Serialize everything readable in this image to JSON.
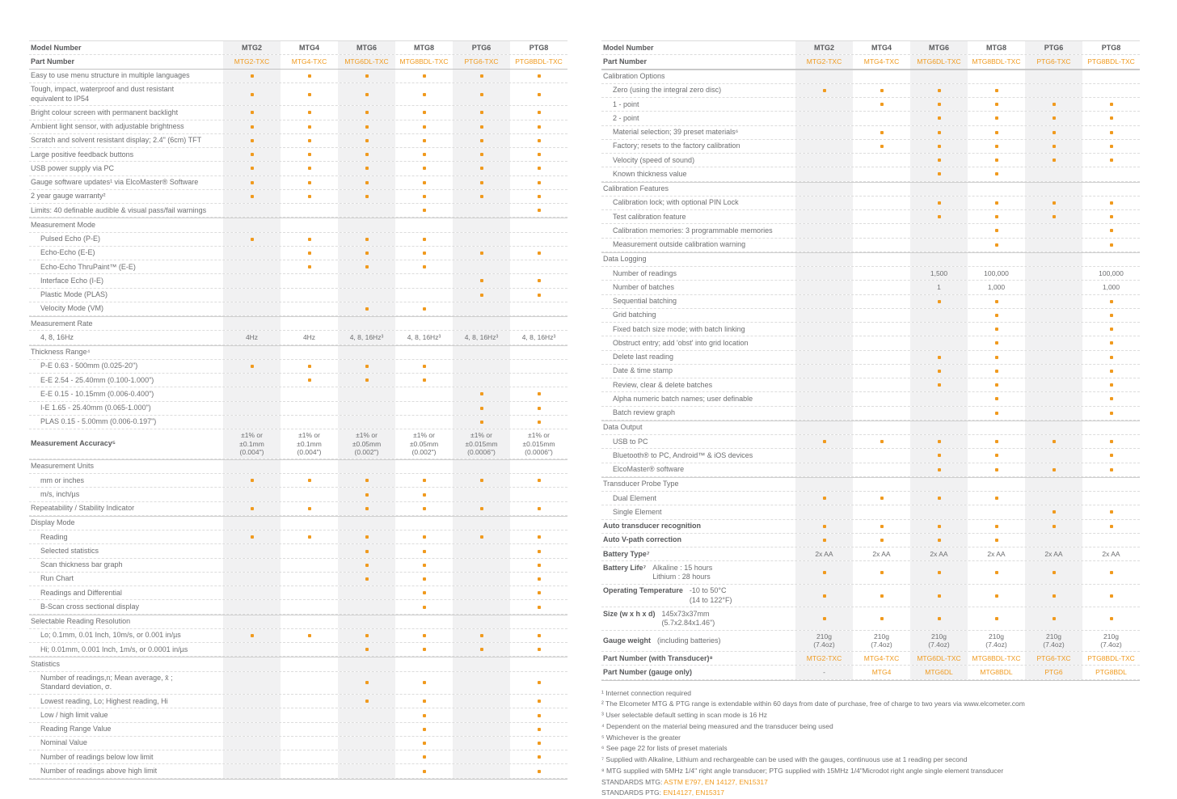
{
  "colors": {
    "accent": "#f09a1e",
    "stripe": "#f1f1f2",
    "text": "#6d6e70",
    "heading": "#58595b"
  },
  "models": [
    "MTG2",
    "MTG4",
    "MTG6",
    "MTG8",
    "PTG6",
    "PTG8"
  ],
  "part_numbers": [
    "MTG2-TXC",
    "MTG4-TXC",
    "MTG6DL-TXC",
    "MTG8BDL-TXC",
    "PTG6-TXC",
    "PTG8BDL-TXC"
  ],
  "header": {
    "model_label": "Model Number",
    "part_label": "Part Number"
  },
  "left_table": {
    "rows": [
      {
        "l": "Easy to use menu structure in multiple languages",
        "c": [
          1,
          1,
          1,
          1,
          1,
          1
        ]
      },
      {
        "l": "Tough, impact, waterproof and dust resistant\nequivalent to IP54",
        "c": [
          1,
          1,
          1,
          1,
          1,
          1
        ]
      },
      {
        "l": "Bright colour screen with permanent backlight",
        "c": [
          1,
          1,
          1,
          1,
          1,
          1
        ]
      },
      {
        "l": "Ambient light sensor, with adjustable brightness",
        "c": [
          1,
          1,
          1,
          1,
          1,
          1
        ]
      },
      {
        "l": "Scratch and solvent resistant display; 2.4\" (6cm) TFT",
        "c": [
          1,
          1,
          1,
          1,
          1,
          1
        ]
      },
      {
        "l": "Large positive feedback buttons",
        "c": [
          1,
          1,
          1,
          1,
          1,
          1
        ]
      },
      {
        "l": "USB power supply via PC",
        "c": [
          1,
          1,
          1,
          1,
          1,
          1
        ]
      },
      {
        "l": "Gauge software updates¹ via ElcoMaster® Software",
        "c": [
          1,
          1,
          1,
          1,
          1,
          1
        ]
      },
      {
        "l": "2 year gauge warranty²",
        "c": [
          1,
          1,
          1,
          1,
          1,
          1
        ]
      },
      {
        "l": "Limits: 40 definable audible & visual pass/fail warnings",
        "c": [
          0,
          0,
          0,
          1,
          0,
          1
        ]
      },
      {
        "s": "Measurement Mode"
      },
      {
        "l": "Pulsed Echo (P-E)",
        "i": 1,
        "c": [
          1,
          1,
          1,
          1,
          0,
          0
        ]
      },
      {
        "l": "Echo-Echo (E-E)",
        "i": 1,
        "c": [
          0,
          1,
          1,
          1,
          1,
          1
        ]
      },
      {
        "l": "Echo-Echo ThruPaint™ (E-E)",
        "i": 1,
        "c": [
          0,
          1,
          1,
          1,
          0,
          0
        ]
      },
      {
        "l": "Interface Echo (I-E)",
        "i": 1,
        "c": [
          0,
          0,
          0,
          0,
          1,
          1
        ]
      },
      {
        "l": "Plastic Mode (PLAS)",
        "i": 1,
        "c": [
          0,
          0,
          0,
          0,
          1,
          1
        ]
      },
      {
        "l": "Velocity Mode (VM)",
        "i": 1,
        "c": [
          0,
          0,
          1,
          1,
          0,
          0
        ]
      },
      {
        "s": "Measurement Rate"
      },
      {
        "l": "4, 8, 16Hz",
        "i": 1,
        "c": [
          "4Hz",
          "4Hz",
          "4, 8, 16Hz³",
          "4, 8, 16Hz³",
          "4, 8, 16Hz³",
          "4, 8, 16Hz³"
        ]
      },
      {
        "s": "Thickness Range⁴"
      },
      {
        "l": "P-E 0.63 - 500mm (0.025-20\")",
        "i": 1,
        "c": [
          1,
          1,
          1,
          1,
          0,
          0
        ]
      },
      {
        "l": "E-E 2.54 - 25.40mm (0.100-1.000\")",
        "i": 1,
        "c": [
          0,
          1,
          1,
          1,
          0,
          0
        ]
      },
      {
        "l": "E-E 0.15 - 10.15mm (0.006-0.400\")",
        "i": 1,
        "c": [
          0,
          0,
          0,
          0,
          1,
          1
        ]
      },
      {
        "l": "I-E 1.65 - 25.40mm (0.065-1.000\")",
        "i": 1,
        "c": [
          0,
          0,
          0,
          0,
          1,
          1
        ]
      },
      {
        "l": "PLAS 0.15 - 5.00mm (0.006-0.197\")",
        "i": 1,
        "c": [
          0,
          0,
          0,
          0,
          1,
          1
        ]
      },
      {
        "l": "Measurement Accuracy⁵",
        "b": 1,
        "c": [
          "±1% or\n±0.1mm\n(0.004\")",
          "±1% or\n±0.1mm\n(0.004\")",
          "±1% or\n±0.05mm\n(0.002\")",
          "±1% or\n±0.05mm\n(0.002\")",
          "±1% or\n±0.015mm\n(0.0006\")",
          "±1% or\n±0.015mm\n(0.0006\")"
        ]
      },
      {
        "s": "Measurement Units"
      },
      {
        "l": "mm or inches",
        "i": 1,
        "c": [
          1,
          1,
          1,
          1,
          1,
          1
        ]
      },
      {
        "l": "m/s, inch/µs",
        "i": 1,
        "c": [
          0,
          0,
          1,
          1,
          0,
          0
        ]
      },
      {
        "l": "Repeatability / Stability Indicator",
        "c": [
          1,
          1,
          1,
          1,
          1,
          1
        ]
      },
      {
        "s": "Display Mode"
      },
      {
        "l": "Reading",
        "i": 1,
        "c": [
          1,
          1,
          1,
          1,
          1,
          1
        ]
      },
      {
        "l": "Selected statistics",
        "i": 1,
        "c": [
          0,
          0,
          1,
          1,
          0,
          1
        ]
      },
      {
        "l": "Scan thickness bar graph",
        "i": 1,
        "c": [
          0,
          0,
          1,
          1,
          0,
          1
        ]
      },
      {
        "l": "Run Chart",
        "i": 1,
        "c": [
          0,
          0,
          1,
          1,
          0,
          1
        ]
      },
      {
        "l": "Readings and Differential",
        "i": 1,
        "c": [
          0,
          0,
          0,
          1,
          0,
          1
        ]
      },
      {
        "l": "B-Scan cross sectional display",
        "i": 1,
        "c": [
          0,
          0,
          0,
          1,
          0,
          1
        ]
      },
      {
        "s": "Selectable Reading Resolution"
      },
      {
        "l": "Lo; 0.1mm, 0.01 Inch, 10m/s, or 0.001 in/µs",
        "i": 1,
        "c": [
          1,
          1,
          1,
          1,
          1,
          1
        ]
      },
      {
        "l": "Hi; 0.01mm, 0.001 Inch, 1m/s, or 0.0001 in/µs",
        "i": 1,
        "c": [
          0,
          0,
          1,
          1,
          1,
          1
        ]
      },
      {
        "s": "Statistics"
      },
      {
        "l": "Number of readings,n; Mean average, x̄ ;\nStandard deviation, σ.",
        "i": 1,
        "c": [
          0,
          0,
          1,
          1,
          0,
          1
        ]
      },
      {
        "l": "Lowest reading, Lo; Highest reading, Hi",
        "i": 1,
        "c": [
          0,
          0,
          1,
          1,
          0,
          1
        ]
      },
      {
        "l": "Low / high limit value",
        "i": 1,
        "c": [
          0,
          0,
          0,
          1,
          0,
          1
        ]
      },
      {
        "l": "Reading Range Value",
        "i": 1,
        "c": [
          0,
          0,
          0,
          1,
          0,
          1
        ]
      },
      {
        "l": "Nominal Value",
        "i": 1,
        "c": [
          0,
          0,
          0,
          1,
          0,
          1
        ]
      },
      {
        "l": "Number of readings below low limit",
        "i": 1,
        "c": [
          0,
          0,
          0,
          1,
          0,
          1
        ]
      },
      {
        "l": "Number of readings above high limit",
        "i": 1,
        "c": [
          0,
          0,
          0,
          1,
          0,
          1
        ]
      }
    ]
  },
  "right_table": {
    "rows": [
      {
        "s": "Calibration Options"
      },
      {
        "l": "Zero (using the integral zero disc)",
        "i": 1,
        "c": [
          1,
          1,
          1,
          1,
          0,
          0
        ]
      },
      {
        "l": "1 - point",
        "i": 1,
        "c": [
          0,
          1,
          1,
          1,
          1,
          1
        ]
      },
      {
        "l": "2 - point",
        "i": 1,
        "c": [
          0,
          0,
          1,
          1,
          1,
          1
        ]
      },
      {
        "l": "Material selection; 39 preset materials⁶",
        "i": 1,
        "c": [
          0,
          1,
          1,
          1,
          1,
          1
        ]
      },
      {
        "l": "Factory; resets to the factory calibration",
        "i": 1,
        "c": [
          0,
          1,
          1,
          1,
          1,
          1
        ]
      },
      {
        "l": "Velocity (speed of sound)",
        "i": 1,
        "c": [
          0,
          0,
          1,
          1,
          1,
          1
        ]
      },
      {
        "l": "Known thickness value",
        "i": 1,
        "c": [
          0,
          0,
          1,
          1,
          0,
          0
        ]
      },
      {
        "s": "Calibration Features"
      },
      {
        "l": "Calibration lock; with optional PIN Lock",
        "i": 1,
        "c": [
          0,
          0,
          1,
          1,
          1,
          1
        ]
      },
      {
        "l": "Test calibration feature",
        "i": 1,
        "c": [
          0,
          0,
          1,
          1,
          1,
          1
        ]
      },
      {
        "l": "Calibration memories: 3 programmable memories",
        "i": 1,
        "c": [
          0,
          0,
          0,
          1,
          0,
          1
        ]
      },
      {
        "l": "Measurement outside calibration warning",
        "i": 1,
        "c": [
          0,
          0,
          0,
          1,
          0,
          1
        ]
      },
      {
        "s": "Data Logging"
      },
      {
        "l": "Number of readings",
        "i": 1,
        "c": [
          "",
          "",
          "1,500",
          "100,000",
          "",
          "100,000"
        ]
      },
      {
        "l": "Number of batches",
        "i": 1,
        "c": [
          "",
          "",
          "1",
          "1,000",
          "",
          "1,000"
        ]
      },
      {
        "l": "Sequential batching",
        "i": 1,
        "c": [
          0,
          0,
          1,
          1,
          0,
          1
        ]
      },
      {
        "l": "Grid batching",
        "i": 1,
        "c": [
          0,
          0,
          0,
          1,
          0,
          1
        ]
      },
      {
        "l": "Fixed batch size mode; with batch linking",
        "i": 1,
        "c": [
          0,
          0,
          0,
          1,
          0,
          1
        ]
      },
      {
        "l": "Obstruct entry; add 'obst' into grid location",
        "i": 1,
        "c": [
          0,
          0,
          0,
          1,
          0,
          1
        ]
      },
      {
        "l": "Delete last reading",
        "i": 1,
        "c": [
          0,
          0,
          1,
          1,
          0,
          1
        ]
      },
      {
        "l": "Date & time stamp",
        "i": 1,
        "c": [
          0,
          0,
          1,
          1,
          0,
          1
        ]
      },
      {
        "l": "Review, clear & delete batches",
        "i": 1,
        "c": [
          0,
          0,
          1,
          1,
          0,
          1
        ]
      },
      {
        "l": "Alpha numeric batch names; user definable",
        "i": 1,
        "c": [
          0,
          0,
          0,
          1,
          0,
          1
        ]
      },
      {
        "l": "Batch review graph",
        "i": 1,
        "c": [
          0,
          0,
          0,
          1,
          0,
          1
        ]
      },
      {
        "s": "Data Output"
      },
      {
        "l": "USB to PC",
        "i": 1,
        "c": [
          1,
          1,
          1,
          1,
          1,
          1
        ]
      },
      {
        "l": "Bluetooth® to PC, Android™ & iOS devices",
        "i": 1,
        "c": [
          0,
          0,
          1,
          1,
          0,
          1
        ]
      },
      {
        "l": "ElcoMaster® software",
        "i": 1,
        "c": [
          0,
          0,
          1,
          1,
          1,
          1
        ]
      },
      {
        "s": "Transducer Probe Type"
      },
      {
        "l": "Dual Element",
        "i": 1,
        "c": [
          1,
          1,
          1,
          1,
          0,
          0
        ]
      },
      {
        "l": "Single Element",
        "i": 1,
        "c": [
          0,
          0,
          0,
          0,
          1,
          1
        ]
      },
      {
        "l": "Auto transducer recognition",
        "b": 1,
        "c": [
          1,
          1,
          1,
          1,
          1,
          1
        ]
      },
      {
        "l": "Auto V-path correction",
        "b": 1,
        "c": [
          1,
          1,
          1,
          1,
          0,
          0
        ]
      },
      {
        "l": "Battery Type⁷",
        "b": 1,
        "c": [
          "2x AA",
          "2x AA",
          "2x AA",
          "2x AA",
          "2x AA",
          "2x AA"
        ]
      },
      {
        "l": "Battery Life⁷",
        "b": 1,
        "l2": "Alkaline : 15 hours\nLithium  : 28 hours",
        "c": [
          1,
          1,
          1,
          1,
          1,
          1
        ]
      },
      {
        "l": "Operating Temperature",
        "b": 1,
        "l2": "-10 to 50°C\n(14 to 122°F)",
        "c": [
          1,
          1,
          1,
          1,
          1,
          1
        ]
      },
      {
        "l": "Size (w x h x d)",
        "b": 1,
        "l2": "145x73x37mm\n(5.7x2.84x1.46\")",
        "c": [
          1,
          1,
          1,
          1,
          1,
          1
        ]
      },
      {
        "l": "Gauge weight",
        "b": 1,
        "l2": "(including batteries)",
        "c": [
          "210g\n(7.4oz)",
          "210g\n(7.4oz)",
          "210g\n(7.4oz)",
          "210g\n(7.4oz)",
          "210g\n(7.4oz)",
          "210g\n(7.4oz)"
        ]
      },
      {
        "l": "Part Number (with Transducer)⁸",
        "b": 1,
        "o": 1,
        "c": [
          "MTG2-TXC",
          "MTG4-TXC",
          "MTG6DL-TXC",
          "MTG8BDL-TXC",
          "PTG6-TXC",
          "PTG8BDL-TXC"
        ]
      },
      {
        "l": "Part Number (gauge only)",
        "b": 1,
        "o": 1,
        "c": [
          "-",
          "MTG4",
          "MTG6DL",
          "MTG8BDL",
          "PTG6",
          "PTG8BDL"
        ]
      }
    ]
  },
  "footnotes": [
    {
      "text": "¹ Internet connection required"
    },
    {
      "text": "² The Elcometer MTG & PTG range is extendable within 60 days from date of purchase, free of charge to two years via www.elcometer.com"
    },
    {
      "text": "³ User selectable default setting in scan mode is 16 Hz"
    },
    {
      "text": "⁴ Dependent on the material being measured and the transducer being used"
    },
    {
      "text": "⁵ Whichever is the greater"
    },
    {
      "text": "⁶ See page 22 for lists of preset materials"
    },
    {
      "text": "⁷ Supplied with Alkaline, Lithium and rechargeable can be used with the gauges, continuous use at 1 reading per second"
    },
    {
      "text": "⁸ MTG supplied with 5MHz 1/4\" right angle transducer; PTG supplied with 15MHz 1/4\"Microdot right angle single element transducer"
    },
    {
      "pre": "STANDARDS MTG: ",
      "orange": "ASTM E797, EN 14127, EN15317"
    },
    {
      "pre": "STANDARDS PTG: ",
      "orange": "EN14127, EN15317"
    }
  ]
}
